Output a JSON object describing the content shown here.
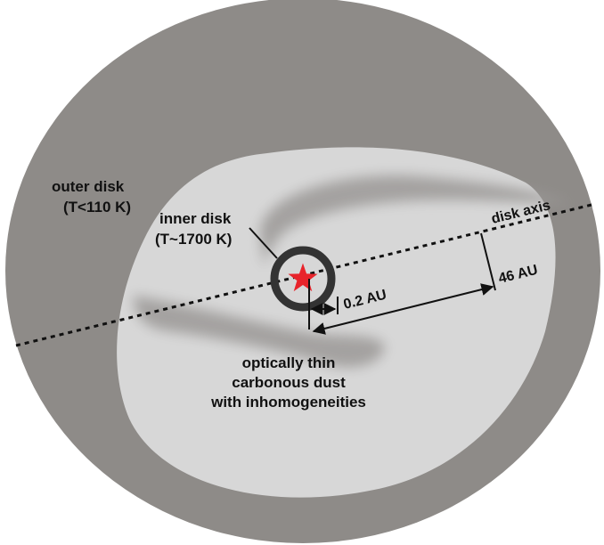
{
  "colors": {
    "background": "#ffffff",
    "outer_disk": "#8e8b88",
    "gap": "#d7d7d7",
    "shadow": "#9b9997",
    "inner_ring": "#333333",
    "star": "#e8242b",
    "line": "#111111"
  },
  "labels": {
    "outer_disk_line1": "outer disk",
    "outer_disk_line2": "(T<110 K)",
    "inner_disk_line1": "inner disk",
    "inner_disk_line2": "(T~1700 K)",
    "disk_axis": "disk axis",
    "scale_inner": "0.2 AU",
    "scale_outer": "46 AU",
    "dust_line1": "optically thin",
    "dust_line2": "carbonous dust",
    "dust_line3": "with inhomogeneities"
  },
  "icons": {
    "star": "star-icon"
  }
}
